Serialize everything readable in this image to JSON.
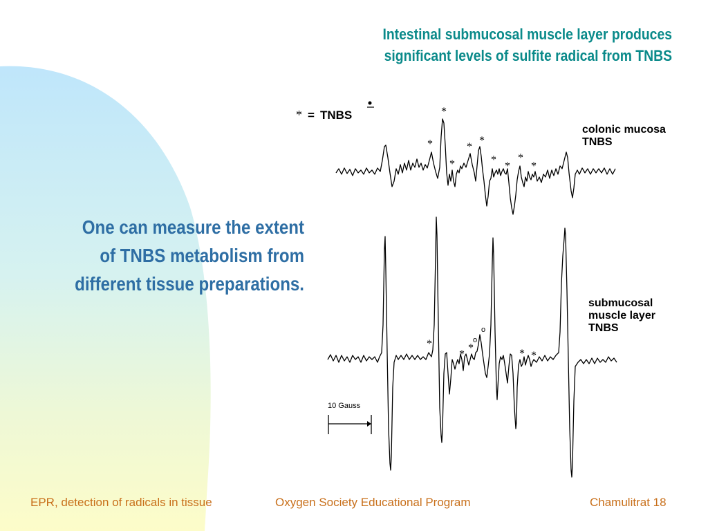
{
  "slide": {
    "title_lines": [
      "Intestinal submucosal muscle layer produces",
      "significant levels of sulfite radical from TNBS"
    ],
    "body_lines": [
      "One can measure the extent",
      "of TNBS metabolism from",
      "different tissue preparations."
    ]
  },
  "figure": {
    "legend": {
      "asterisk": "*",
      "equals": "=",
      "label": "TNBS"
    },
    "spectrum_top_label_lines": [
      "colonic mucosa",
      "TNBS"
    ],
    "spectrum_bottom_label_lines": [
      "submucosal",
      "muscle layer",
      "TNBS"
    ],
    "scale_bar_label": "10 Gauss",
    "peak_marker_asterisk": "*",
    "peak_marker_circle": "o"
  },
  "footer": {
    "left": "EPR, detection of radicals in tissue",
    "center": "Oxygen Society Educational Program",
    "right": "Chamulitrat 18"
  },
  "colors": {
    "title": "#0a8a8a",
    "body": "#2e6ea4",
    "footer": "#c86f1a"
  }
}
